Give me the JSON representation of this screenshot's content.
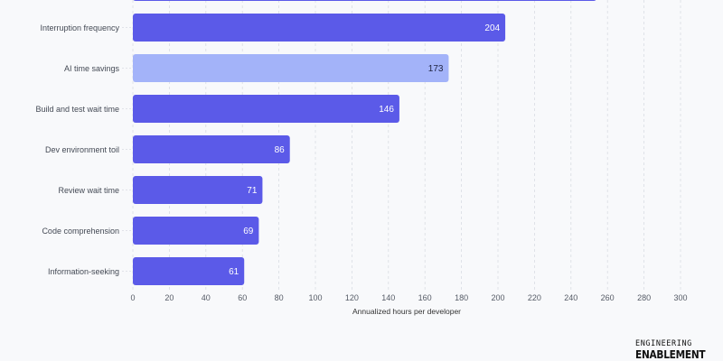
{
  "chart_data": {
    "type": "bar",
    "orientation": "horizontal",
    "title": "",
    "xlabel": "Annualized hours per developer",
    "ylabel": "",
    "xlim": [
      0,
      300
    ],
    "xticks": [
      0,
      20,
      40,
      60,
      80,
      100,
      120,
      140,
      160,
      180,
      200,
      220,
      240,
      260,
      280,
      300
    ],
    "grid": true,
    "categories": [
      "",
      "Interruption frequency",
      "AI time savings",
      "Build and test wait time",
      "Dev environment toil",
      "Review wait time",
      "Code comprehension",
      "Information-seeking"
    ],
    "values": [
      254,
      204,
      173,
      146,
      86,
      71,
      69,
      61
    ],
    "value_labels": [
      "",
      "204",
      "173",
      "146",
      "86",
      "71",
      "69",
      "61"
    ],
    "highlight": [
      false,
      false,
      true,
      false,
      false,
      false,
      false,
      false
    ],
    "colors": {
      "bar": "#5b5ae8",
      "highlight_bar": "#a3b3f9",
      "bar_label": "#ffffff",
      "highlight_label": "#1f2340",
      "grid": "#d9dce3"
    }
  },
  "branding": {
    "line1": "ENGINEERING",
    "line2": "ENABLEMENT"
  }
}
